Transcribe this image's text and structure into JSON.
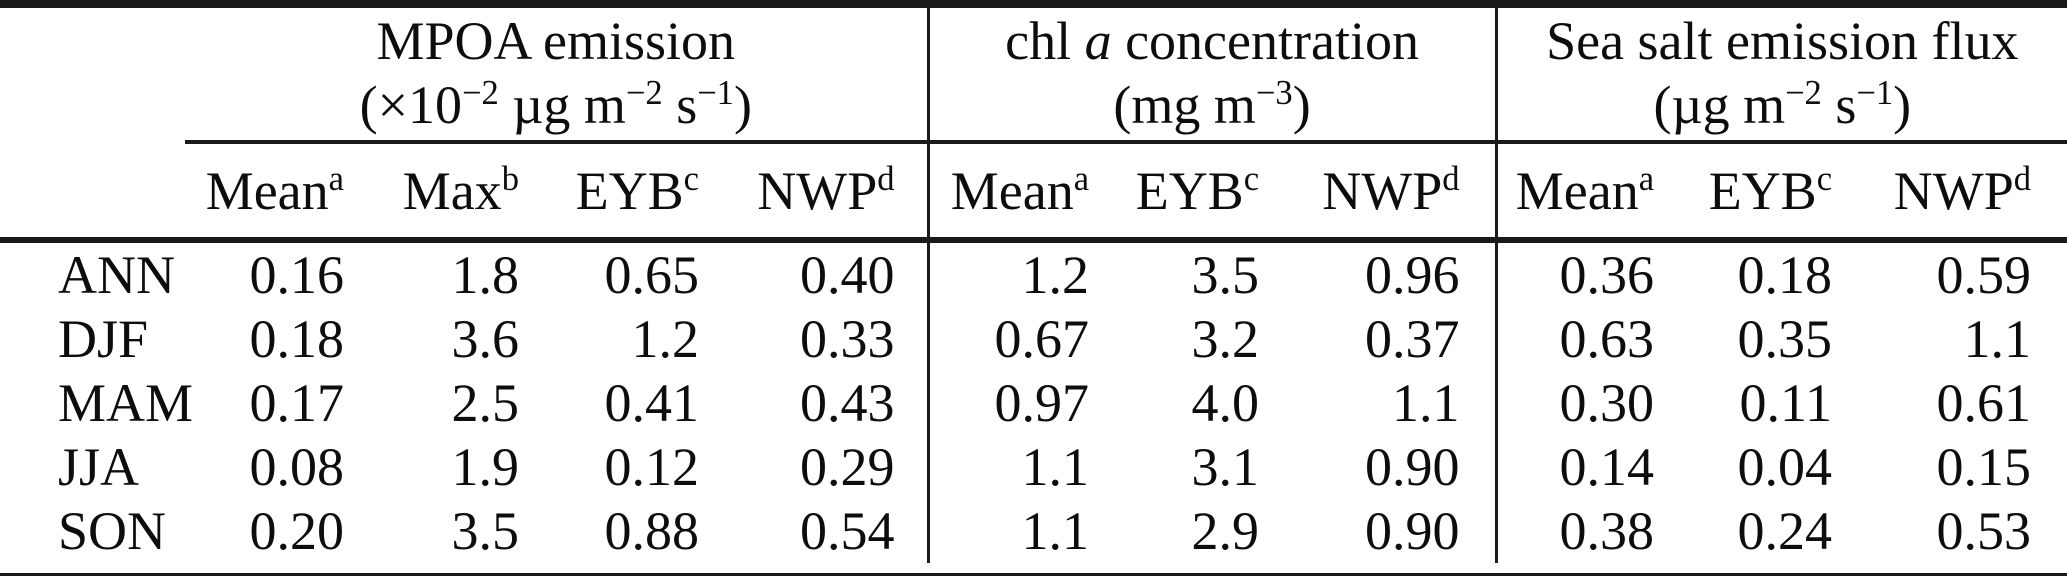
{
  "colors": {
    "text": "#0d0d0d",
    "rule": "#1a1a1a",
    "background": "#ffffff"
  },
  "table": {
    "column_groups": [
      {
        "name": "mpoa-emission",
        "title_segments": [
          {
            "t": "MPOA emission"
          }
        ],
        "units_segments": [
          {
            "t": "(×10"
          },
          {
            "t": "−2",
            "sup": true
          },
          {
            "t": " µg m"
          },
          {
            "t": "−2",
            "sup": true
          },
          {
            "t": " s"
          },
          {
            "t": "−1",
            "sup": true
          },
          {
            "t": ")"
          }
        ],
        "columns": [
          [
            {
              "t": "Mean"
            },
            {
              "t": "a",
              "sup": true
            }
          ],
          [
            {
              "t": "Max"
            },
            {
              "t": "b",
              "sup": true
            }
          ],
          [
            {
              "t": "EYB"
            },
            {
              "t": "c",
              "sup": true
            }
          ],
          [
            {
              "t": "NWP"
            },
            {
              "t": "d",
              "sup": true
            }
          ]
        ]
      },
      {
        "name": "chl-a-concentration",
        "title_segments": [
          {
            "t": "chl "
          },
          {
            "t": "a",
            "i": true
          },
          {
            "t": " concentration"
          }
        ],
        "units_segments": [
          {
            "t": "(mg m"
          },
          {
            "t": "−3",
            "sup": true
          },
          {
            "t": ")"
          }
        ],
        "columns": [
          [
            {
              "t": "Mean"
            },
            {
              "t": "a",
              "sup": true
            }
          ],
          [
            {
              "t": "EYB"
            },
            {
              "t": "c",
              "sup": true
            }
          ],
          [
            {
              "t": "NWP"
            },
            {
              "t": "d",
              "sup": true
            }
          ]
        ]
      },
      {
        "name": "sea-salt-emission-flux",
        "title_segments": [
          {
            "t": "Sea salt emission flux"
          }
        ],
        "units_segments": [
          {
            "t": "(µg m"
          },
          {
            "t": "−2",
            "sup": true
          },
          {
            "t": " s"
          },
          {
            "t": "−1",
            "sup": true
          },
          {
            "t": ")"
          }
        ],
        "columns": [
          [
            {
              "t": "Mean"
            },
            {
              "t": "a",
              "sup": true
            }
          ],
          [
            {
              "t": "EYB"
            },
            {
              "t": "c",
              "sup": true
            }
          ],
          [
            {
              "t": "NWP"
            },
            {
              "t": "d",
              "sup": true
            }
          ]
        ]
      }
    ],
    "rows": [
      {
        "label": "ANN",
        "values": [
          "0.16",
          "1.8",
          "0.65",
          "0.40",
          "1.2",
          "3.5",
          "0.96",
          "0.36",
          "0.18",
          "0.59"
        ]
      },
      {
        "label": "DJF",
        "values": [
          "0.18",
          "3.6",
          "1.2",
          "0.33",
          "0.67",
          "3.2",
          "0.37",
          "0.63",
          "0.35",
          "1.1"
        ]
      },
      {
        "label": "MAM",
        "values": [
          "0.17",
          "2.5",
          "0.41",
          "0.43",
          "0.97",
          "4.0",
          "1.1",
          "0.30",
          "0.11",
          "0.61"
        ]
      },
      {
        "label": "JJA",
        "values": [
          "0.08",
          "1.9",
          "0.12",
          "0.29",
          "1.1",
          "3.1",
          "0.90",
          "0.14",
          "0.04",
          "0.15"
        ]
      },
      {
        "label": "SON",
        "values": [
          "0.20",
          "3.5",
          "0.88",
          "0.54",
          "1.1",
          "2.9",
          "0.90",
          "0.38",
          "0.24",
          "0.53"
        ]
      }
    ]
  }
}
